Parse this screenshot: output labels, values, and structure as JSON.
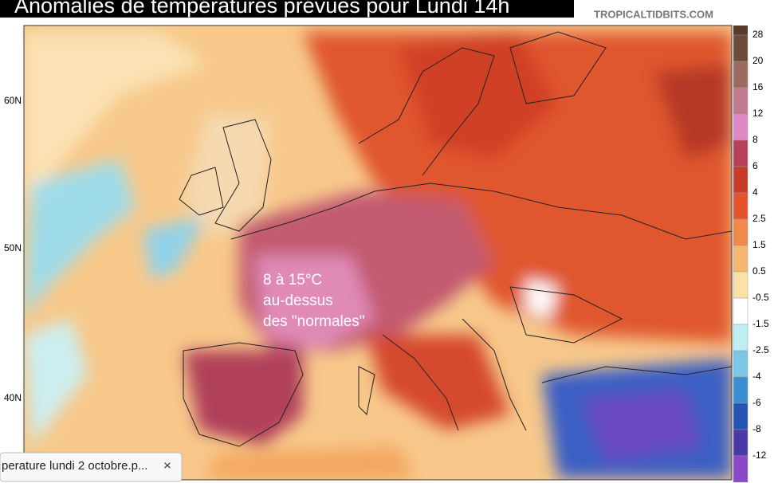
{
  "header": {
    "title": "Anomalies de températures prévues pour Lundi 14h",
    "source": "TROPICALTIDBITS.COM"
  },
  "map": {
    "lat_labels": [
      "60N",
      "50N",
      "40N"
    ],
    "annotation": [
      "8 à 15°C",
      "au-dessus",
      "des \"normales\""
    ]
  },
  "colorbar": [
    {
      "label": "28",
      "color": "#6b4a3a"
    },
    {
      "label": "20",
      "color": "#9c6a60"
    },
    {
      "label": "16",
      "color": "#c27a90"
    },
    {
      "label": "12",
      "color": "#e088c6"
    },
    {
      "label": "8",
      "color": "#b8405a"
    },
    {
      "label": "6",
      "color": "#c83a2a"
    },
    {
      "label": "4",
      "color": "#e4532c"
    },
    {
      "label": "2.5",
      "color": "#f08a4a"
    },
    {
      "label": "1.5",
      "color": "#f6b870"
    },
    {
      "label": "0.5",
      "color": "#fae2a6"
    },
    {
      "label": "-0.5",
      "color": "#ffffff"
    },
    {
      "label": "-1.5",
      "color": "#bfeef2"
    },
    {
      "label": "-2.5",
      "color": "#7cc6e6"
    },
    {
      "label": "-4",
      "color": "#3a8ed0"
    },
    {
      "label": "-6",
      "color": "#2455b4"
    },
    {
      "label": "-8",
      "color": "#4a3aa8"
    },
    {
      "label": "-12",
      "color": "#8a48c8"
    }
  ],
  "tab": {
    "filename": "perature lundi 2 octobre.p...",
    "close": "×"
  }
}
